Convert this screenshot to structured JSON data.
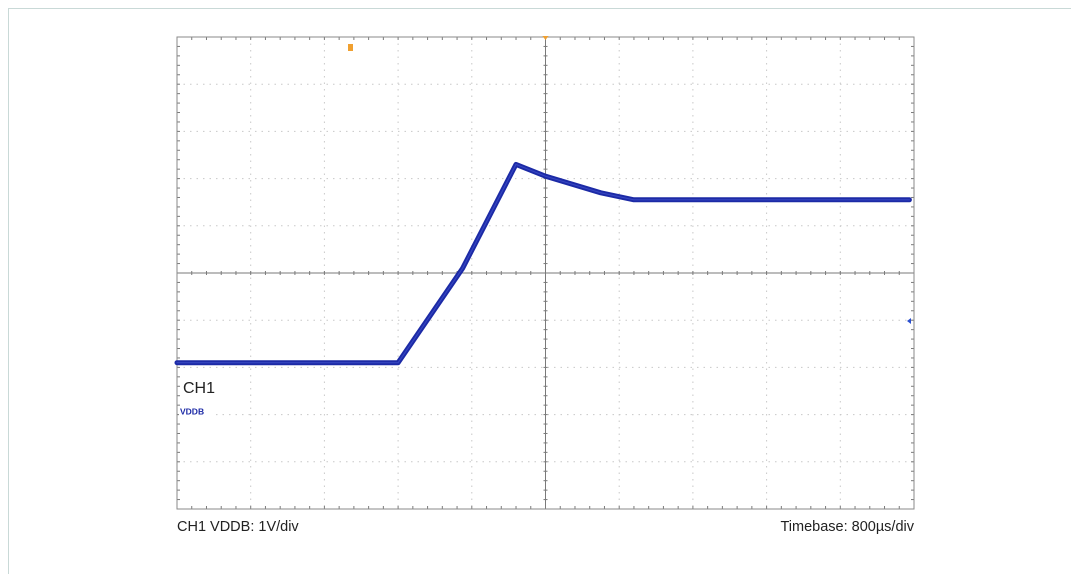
{
  "colors": {
    "trace": "#1c2aa6",
    "grid": "#c8c8c8",
    "axis": "#7a7a7a",
    "frame": "#8a8a8a",
    "trigger_marker": "#f0a030",
    "level_marker": "#2a4fd0"
  },
  "channel_label": "CH1",
  "ground_marker_label": "VDDB",
  "captions": {
    "left": "CH1 VDDB: 1V/div",
    "right": "Timebase: 800µs/div"
  },
  "chart_data": {
    "type": "line",
    "title": "",
    "xlabel": "Timebase: 800µs/div",
    "ylabel": "CH1 VDDB: 1V/div",
    "x_divisions": 10,
    "y_divisions": 10,
    "x_unit_per_div": "800µs",
    "y_unit_per_div": "1V",
    "xlim": [
      -4000,
      4000
    ],
    "ylim": [
      -3.1,
      6.9
    ],
    "grid": true,
    "series": [
      {
        "x": [
          -4000,
          -2800,
          -1600,
          -900,
          -320,
          0,
          600,
          960,
          3950
        ],
        "y": [
          0.0,
          0.0,
          0.0,
          2.0,
          4.2,
          3.95,
          3.6,
          3.45,
          3.45
        ]
      }
    ]
  }
}
